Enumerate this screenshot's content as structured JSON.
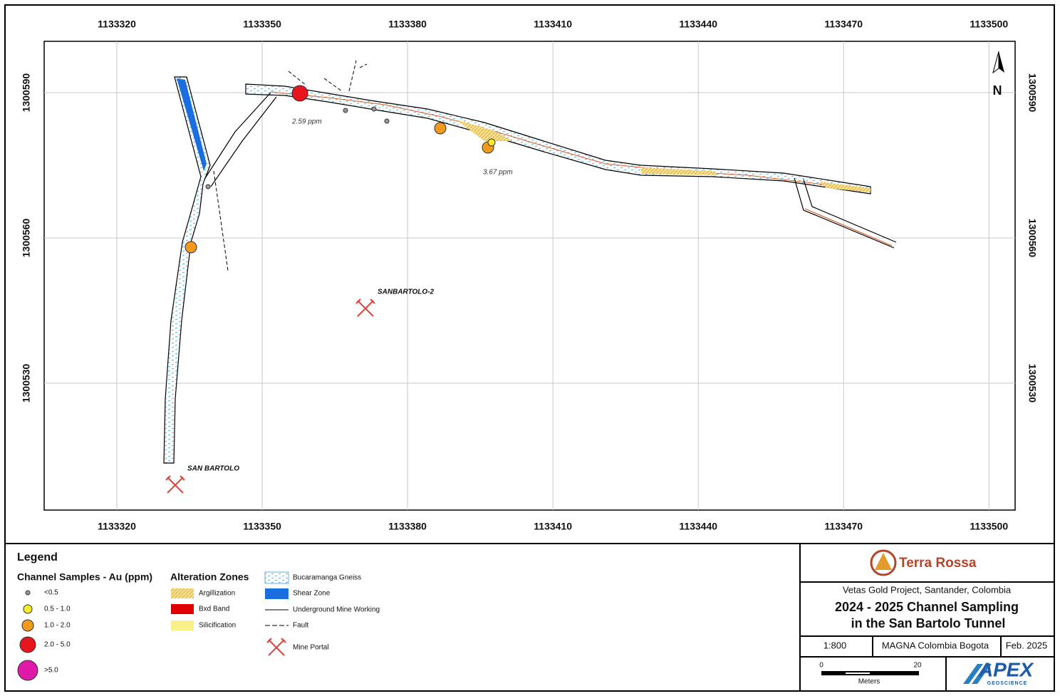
{
  "map": {
    "xlim": [
      1133305,
      1133505.4
    ],
    "xticks": [
      1133320,
      1133350,
      1133380,
      1133410,
      1133440,
      1133470,
      1133500
    ],
    "ylim": [
      1300503.8,
      1300600.6
    ],
    "yticks": [
      1300530,
      1300560,
      1300590
    ],
    "grid": true,
    "annotations": [
      "2.59 ppm",
      "3.67 ppm"
    ],
    "portals": [
      "SANBARTOLO-2",
      "SAN BARTOLO"
    ],
    "north_arrow": "N"
  },
  "legend": {
    "title": "Legend",
    "groups": [
      {
        "title": "Channel Samples - Au (ppm)",
        "items": [
          "<0.5",
          "0.5 - 1.0",
          "1.0 - 2.0",
          "2.0 - 5.0",
          ">5.0"
        ]
      },
      {
        "title": "Alteration Zones",
        "items": [
          "Argillization",
          "Bxd Band",
          "Silicification"
        ]
      },
      {
        "items": [
          "Bucaramanga Gneiss",
          "Shear Zone",
          "Underground Mine Working",
          "Fault",
          "Mine Portal"
        ]
      }
    ]
  },
  "title_block": {
    "company": "Terra Rossa",
    "project": "Vetas Gold Project, Santander, Colombia",
    "title_lines": [
      "2024 - 2025 Channel Sampling",
      "in the San Bartolo Tunnel"
    ],
    "scale": "1:800",
    "datum": "MAGNA Colombia Bogota",
    "date": "Feb. 2025",
    "scale_bar": {
      "ticks": [
        0,
        20
      ],
      "unit": "Meters"
    },
    "logo": {
      "name": "APEX",
      "tagline": "GEOSCIENCE"
    }
  }
}
